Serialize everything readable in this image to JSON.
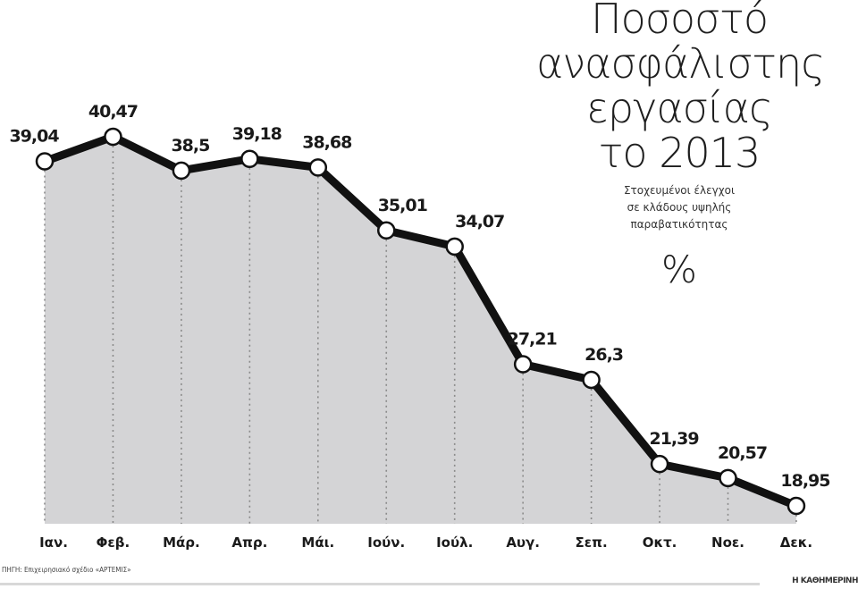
{
  "header": {
    "title_lines": [
      "Ποσοστό",
      "ανασφάλιστης",
      "εργασίας",
      "το 2013"
    ],
    "subtitle_lines": [
      "Στοχευμένοι έλεγχοι",
      "σε κλάδους υψηλής",
      "παραβατικότητας"
    ],
    "unit": "%"
  },
  "footer": {
    "source": "ΠΗΓΗ: Επιχειρησιακό σχέδιο «ΑΡΤΕΜΙΣ»",
    "credit": "Η ΚΑΘΗΜΕΡΙΝΗ"
  },
  "colors": {
    "area_fill": "#d4d4d6",
    "line": "#111111",
    "marker_fill": "#ffffff",
    "grid_dots": "#8a8a8a"
  },
  "chart_data": {
    "type": "area",
    "title": "Ποσοστό ανασφάλιστης εργασίας το 2013",
    "subtitle": "Στοχευμένοι έλεγχοι σε κλάδους υψηλής παραβατικότητας",
    "xlabel": "",
    "ylabel": "%",
    "categories": [
      "Ιαν.",
      "Φεβ.",
      "Μάρ.",
      "Απρ.",
      "Μάι.",
      "Ιούν.",
      "Ιούλ.",
      "Αυγ.",
      "Σεπ.",
      "Οκτ.",
      "Νοε.",
      "Δεκ."
    ],
    "value_labels": [
      "39,04",
      "40,47",
      "38,5",
      "39,18",
      "38,68",
      "35,01",
      "34,07",
      "27,21",
      "26,3",
      "21,39",
      "20,57",
      "18,95"
    ],
    "values": [
      39.04,
      40.47,
      38.5,
      39.18,
      38.68,
      35.01,
      34.07,
      27.21,
      26.3,
      21.39,
      20.57,
      18.95
    ],
    "grid": "vertical dotted lines at each month",
    "legend": "none",
    "source": "ΠΗΓΗ: Επιχειρησιακό σχέδιο «ΑΡΤΕΜΙΣ»"
  }
}
